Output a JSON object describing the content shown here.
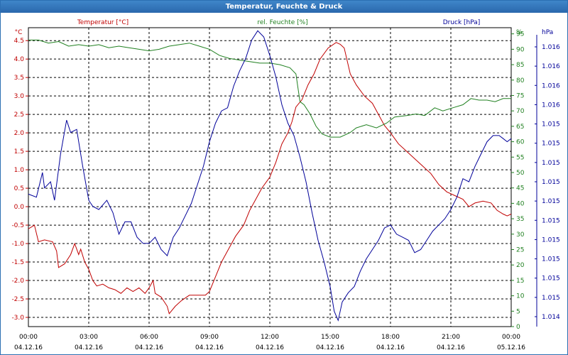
{
  "window": {
    "title": "Temperatur, Feuchte & Druck"
  },
  "colors": {
    "temperature": "#c00000",
    "humidity": "#208020",
    "pressure": "#000099",
    "title_bar": "#2a68ad",
    "grid": "#000000"
  },
  "chart_data": {
    "type": "line",
    "title": "Temperatur, Feuchte & Druck",
    "grid": true,
    "legend": "top (one label above each axis)",
    "x_labels": [
      [
        "00:00",
        "04.12.16"
      ],
      [
        "03:00",
        "04.12.16"
      ],
      [
        "06:00",
        "04.12.16"
      ],
      [
        "09:00",
        "04.12.16"
      ],
      [
        "12:00",
        "04.12.16"
      ],
      [
        "15:00",
        "04.12.16"
      ],
      [
        "18:00",
        "04.12.16"
      ],
      [
        "21:00",
        "04.12.16"
      ],
      [
        "00:00",
        "05.12.16"
      ]
    ],
    "xlim": [
      0,
      24
    ],
    "axes": {
      "left": {
        "unit_label": "°C",
        "ylim": [
          -3.25,
          4.85
        ],
        "ticks": [
          "-3.0",
          "-2.5",
          "-2.0",
          "-1.5",
          "-1.0",
          "-0.5",
          "0.0",
          "0.5",
          "1.0",
          "1.5",
          "2.0",
          "2.5",
          "3.0",
          "3.5",
          "4.0",
          "4.5"
        ]
      },
      "right": {
        "unit_label": "%",
        "ylim": [
          0,
          97
        ],
        "ticks": [
          "0",
          "5",
          "10",
          "15",
          "20",
          "25",
          "30",
          "35",
          "40",
          "45",
          "50",
          "55",
          "60",
          "65",
          "70",
          "75",
          "80",
          "85",
          "90",
          "95"
        ]
      },
      "right2": {
        "unit_label": "hPa",
        "ticks": [
          "1.014",
          "1.015",
          "1.015",
          "1.015",
          "1.015",
          "1.015",
          "1.015",
          "1.015",
          "1.015",
          "1.015",
          "1.015",
          "1.016",
          "1.016",
          "1.016",
          "1.016"
        ]
      }
    },
    "series": [
      {
        "name": "Temperatur [°C]",
        "axis": "left",
        "color": "#c00000",
        "points": [
          [
            0,
            -0.6
          ],
          [
            0.3,
            -0.5
          ],
          [
            0.5,
            -0.95
          ],
          [
            0.8,
            -0.9
          ],
          [
            1.2,
            -0.95
          ],
          [
            1.4,
            -1.2
          ],
          [
            1.5,
            -1.65
          ],
          [
            1.8,
            -1.55
          ],
          [
            2.1,
            -1.3
          ],
          [
            2.3,
            -1.0
          ],
          [
            2.5,
            -1.3
          ],
          [
            2.6,
            -1.15
          ],
          [
            2.8,
            -1.5
          ],
          [
            3.0,
            -1.7
          ],
          [
            3.2,
            -2.0
          ],
          [
            3.4,
            -2.15
          ],
          [
            3.7,
            -2.1
          ],
          [
            4.0,
            -2.2
          ],
          [
            4.3,
            -2.25
          ],
          [
            4.6,
            -2.35
          ],
          [
            4.9,
            -2.2
          ],
          [
            5.2,
            -2.3
          ],
          [
            5.5,
            -2.2
          ],
          [
            5.8,
            -2.35
          ],
          [
            6.0,
            -2.2
          ],
          [
            6.2,
            -2.0
          ],
          [
            6.3,
            -2.35
          ],
          [
            6.6,
            -2.45
          ],
          [
            6.9,
            -2.7
          ],
          [
            7.0,
            -2.9
          ],
          [
            7.3,
            -2.7
          ],
          [
            7.6,
            -2.55
          ],
          [
            8.0,
            -2.4
          ],
          [
            8.4,
            -2.4
          ],
          [
            8.8,
            -2.4
          ],
          [
            9.0,
            -2.3
          ],
          [
            9.3,
            -1.9
          ],
          [
            9.6,
            -1.5
          ],
          [
            10.0,
            -1.1
          ],
          [
            10.3,
            -0.8
          ],
          [
            10.7,
            -0.5
          ],
          [
            11.0,
            -0.1
          ],
          [
            11.3,
            0.2
          ],
          [
            11.6,
            0.5
          ],
          [
            12.0,
            0.8
          ],
          [
            12.3,
            1.2
          ],
          [
            12.6,
            1.7
          ],
          [
            12.9,
            2.0
          ],
          [
            13.1,
            2.3
          ],
          [
            13.3,
            2.7
          ],
          [
            13.6,
            2.9
          ],
          [
            13.9,
            3.3
          ],
          [
            14.2,
            3.6
          ],
          [
            14.5,
            4.0
          ],
          [
            14.9,
            4.3
          ],
          [
            15.3,
            4.45
          ],
          [
            15.5,
            4.4
          ],
          [
            15.7,
            4.3
          ],
          [
            16.0,
            3.6
          ],
          [
            16.3,
            3.3
          ],
          [
            16.7,
            3.0
          ],
          [
            17.1,
            2.8
          ],
          [
            17.4,
            2.5
          ],
          [
            17.7,
            2.2
          ],
          [
            18.0,
            2.0
          ],
          [
            18.4,
            1.7
          ],
          [
            18.8,
            1.5
          ],
          [
            19.2,
            1.3
          ],
          [
            19.6,
            1.1
          ],
          [
            20.0,
            0.9
          ],
          [
            20.4,
            0.6
          ],
          [
            20.8,
            0.4
          ],
          [
            21.2,
            0.3
          ],
          [
            21.6,
            0.2
          ],
          [
            21.9,
            0.0
          ],
          [
            22.2,
            0.1
          ],
          [
            22.6,
            0.15
          ],
          [
            23.0,
            0.1
          ],
          [
            23.3,
            -0.1
          ],
          [
            23.6,
            -0.2
          ],
          [
            23.8,
            -0.25
          ],
          [
            24.0,
            -0.2
          ]
        ]
      },
      {
        "name": "rel. Feuchte [%]",
        "axis": "right",
        "color": "#208020",
        "points": [
          [
            0,
            93
          ],
          [
            0.5,
            93
          ],
          [
            1.0,
            92
          ],
          [
            1.5,
            92.5
          ],
          [
            2.0,
            91
          ],
          [
            2.5,
            91.5
          ],
          [
            3.0,
            91
          ],
          [
            3.5,
            91.5
          ],
          [
            4.0,
            90.5
          ],
          [
            4.5,
            91
          ],
          [
            5.0,
            90.5
          ],
          [
            5.5,
            90
          ],
          [
            6.0,
            89.5
          ],
          [
            6.5,
            90
          ],
          [
            7.0,
            91
          ],
          [
            7.5,
            91.5
          ],
          [
            8.0,
            92
          ],
          [
            8.5,
            91
          ],
          [
            9.0,
            90
          ],
          [
            9.5,
            88
          ],
          [
            10.0,
            87
          ],
          [
            10.5,
            86.5
          ],
          [
            11.0,
            86
          ],
          [
            11.5,
            85.5
          ],
          [
            12.0,
            85.5
          ],
          [
            12.5,
            85
          ],
          [
            13.0,
            84
          ],
          [
            13.3,
            82
          ],
          [
            13.5,
            73
          ],
          [
            13.7,
            72
          ],
          [
            14.0,
            69
          ],
          [
            14.3,
            65
          ],
          [
            14.6,
            62.5
          ],
          [
            15.0,
            61.5
          ],
          [
            15.5,
            61.5
          ],
          [
            16.0,
            63
          ],
          [
            16.3,
            64.5
          ],
          [
            16.8,
            65.5
          ],
          [
            17.3,
            64.5
          ],
          [
            17.8,
            66
          ],
          [
            18.2,
            68
          ],
          [
            18.8,
            68.5
          ],
          [
            19.3,
            69
          ],
          [
            19.7,
            68.5
          ],
          [
            20.2,
            71
          ],
          [
            20.6,
            70
          ],
          [
            21.1,
            71
          ],
          [
            21.6,
            72
          ],
          [
            22.0,
            74
          ],
          [
            22.4,
            73.5
          ],
          [
            22.8,
            73.5
          ],
          [
            23.2,
            73
          ],
          [
            23.6,
            74
          ],
          [
            24.0,
            74
          ]
        ]
      },
      {
        "name": "Druck [hPa]",
        "axis": "right",
        "color": "#000099",
        "points": [
          [
            0,
            43
          ],
          [
            0.4,
            42
          ],
          [
            0.7,
            50
          ],
          [
            0.8,
            45
          ],
          [
            1.1,
            47
          ],
          [
            1.3,
            41
          ],
          [
            1.6,
            56
          ],
          [
            1.9,
            67
          ],
          [
            2.1,
            63
          ],
          [
            2.4,
            64
          ],
          [
            2.7,
            52
          ],
          [
            3.0,
            41
          ],
          [
            3.2,
            39
          ],
          [
            3.5,
            38
          ],
          [
            3.9,
            41
          ],
          [
            4.2,
            37
          ],
          [
            4.5,
            30
          ],
          [
            4.8,
            34
          ],
          [
            5.1,
            34
          ],
          [
            5.4,
            29
          ],
          [
            5.7,
            27
          ],
          [
            6.0,
            27
          ],
          [
            6.3,
            29
          ],
          [
            6.6,
            25
          ],
          [
            6.9,
            23
          ],
          [
            7.2,
            29
          ],
          [
            7.5,
            32
          ],
          [
            7.8,
            36
          ],
          [
            8.1,
            40
          ],
          [
            8.4,
            46
          ],
          [
            8.7,
            52
          ],
          [
            9.0,
            60
          ],
          [
            9.3,
            66
          ],
          [
            9.6,
            70
          ],
          [
            9.9,
            71
          ],
          [
            10.2,
            78
          ],
          [
            10.5,
            83
          ],
          [
            10.8,
            87
          ],
          [
            11.1,
            93
          ],
          [
            11.4,
            96
          ],
          [
            11.7,
            94
          ],
          [
            12.0,
            88
          ],
          [
            12.3,
            81
          ],
          [
            12.6,
            72
          ],
          [
            12.9,
            66
          ],
          [
            13.2,
            62
          ],
          [
            13.5,
            55
          ],
          [
            13.8,
            47
          ],
          [
            14.1,
            37
          ],
          [
            14.4,
            28
          ],
          [
            14.7,
            21
          ],
          [
            15.0,
            13
          ],
          [
            15.2,
            5
          ],
          [
            15.4,
            2
          ],
          [
            15.6,
            8
          ],
          [
            15.9,
            11
          ],
          [
            16.2,
            13
          ],
          [
            16.5,
            18
          ],
          [
            16.8,
            22
          ],
          [
            17.1,
            25
          ],
          [
            17.4,
            28
          ],
          [
            17.7,
            32
          ],
          [
            18.0,
            33
          ],
          [
            18.3,
            30
          ],
          [
            18.6,
            29
          ],
          [
            18.9,
            28
          ],
          [
            19.2,
            24
          ],
          [
            19.5,
            25
          ],
          [
            19.8,
            28
          ],
          [
            20.1,
            31
          ],
          [
            20.4,
            33
          ],
          [
            20.7,
            35
          ],
          [
            21.0,
            38
          ],
          [
            21.3,
            42
          ],
          [
            21.6,
            48
          ],
          [
            21.9,
            47
          ],
          [
            22.2,
            52
          ],
          [
            22.5,
            56
          ],
          [
            22.8,
            60
          ],
          [
            23.1,
            62
          ],
          [
            23.4,
            62
          ],
          [
            23.6,
            61
          ],
          [
            23.8,
            60
          ],
          [
            24.0,
            61
          ]
        ]
      }
    ]
  }
}
